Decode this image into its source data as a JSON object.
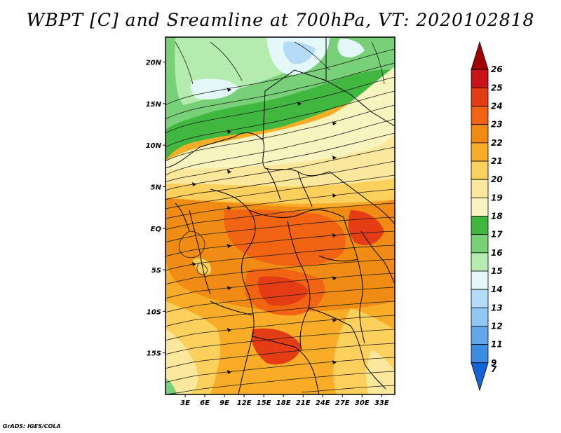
{
  "title": "WBPT [C] and Sreamline at 700hPa, VT: 2020102818",
  "credit": "GrADS: IGES/COLA",
  "map": {
    "lon_range": [
      0,
      35
    ],
    "lat_range": [
      -20,
      23
    ],
    "x_ticks": [
      "3E",
      "6E",
      "9E",
      "12E",
      "15E",
      "18E",
      "21E",
      "24E",
      "27E",
      "30E",
      "33E"
    ],
    "y_ticks": [
      "20N",
      "15N",
      "10N",
      "5N",
      "EQ",
      "5S",
      "10S",
      "15S"
    ]
  },
  "colorbar": {
    "labels": [
      "26",
      "25",
      "24",
      "23",
      "22",
      "21",
      "20",
      "19",
      "18",
      "17",
      "16",
      "15",
      "14",
      "13",
      "12",
      "11",
      "9",
      "7"
    ],
    "colors": [
      "#a00000",
      "#c81414",
      "#e43c14",
      "#f06414",
      "#f08c14",
      "#f8ac28",
      "#fcd05c",
      "#fce89c",
      "#f8f4c0",
      "#40b840",
      "#78d078",
      "#b4ecb0",
      "#e4f8f8",
      "#b4dcf8",
      "#90c8f4",
      "#64a8ec",
      "#3c8ce4",
      "#1464d8"
    ]
  }
}
